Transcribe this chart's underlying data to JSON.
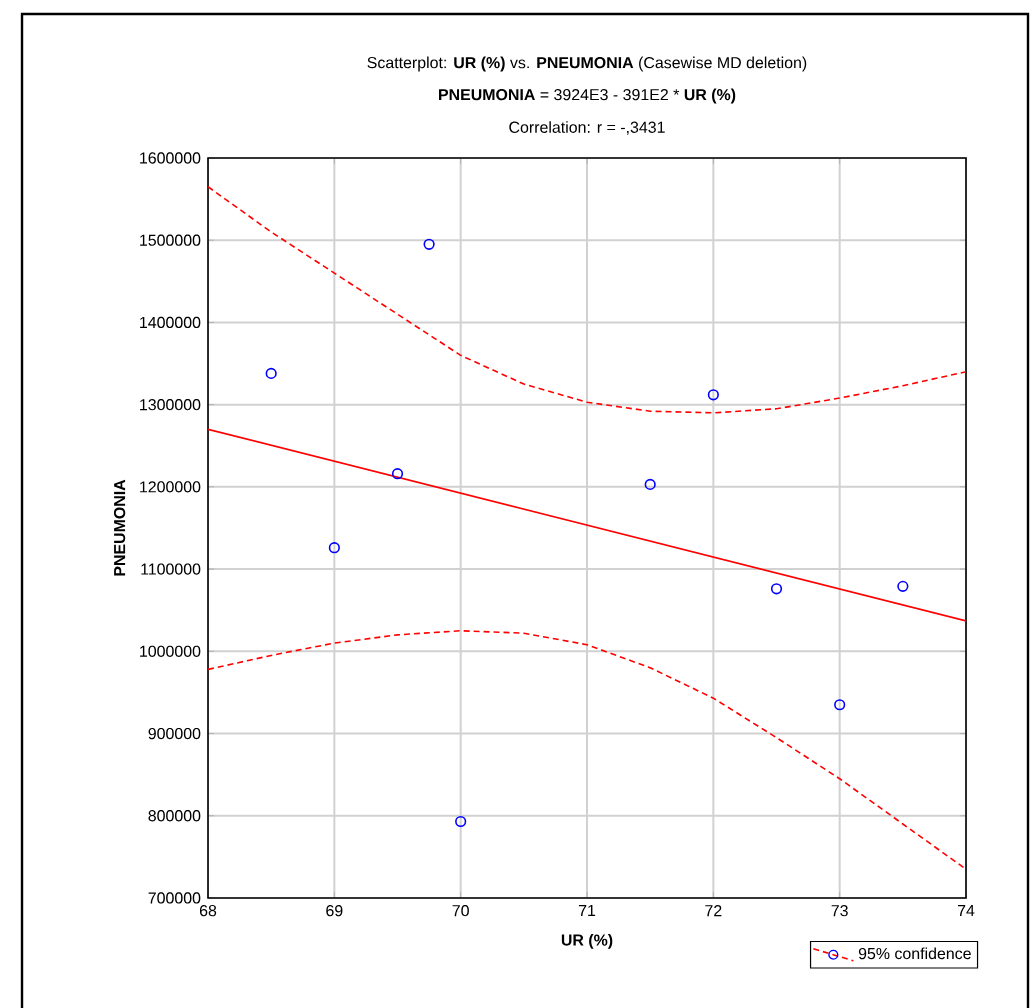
{
  "chart_data": {
    "type": "scatter",
    "title": "Scatterplot: **UR (%)** vs. **PNEUMONIA** (Casewise MD deletion)",
    "subtitle": "**PNEUMONIA** = 3924E3 - 391E2  * **UR (%)**",
    "annotations": [
      "Correlation: r = -,3431"
    ],
    "xlabel": "UR (%)",
    "ylabel": "PNEUMONIA",
    "xlim": [
      68,
      74
    ],
    "ylim": [
      700000,
      1600000
    ],
    "xticks": [
      68,
      69,
      70,
      71,
      72,
      73,
      74
    ],
    "yticks": [
      700000,
      800000,
      900000,
      1000000,
      1100000,
      1200000,
      1300000,
      1400000,
      1500000,
      1600000
    ],
    "grid": true,
    "legend": "bottom right",
    "series": [
      {
        "marker": "circle",
        "color": "#0000ff",
        "x": [
          68.5,
          69,
          69.5,
          69.75,
          70,
          71.5,
          72,
          72.5,
          73,
          73.5
        ],
        "values": [
          1338000,
          1126000,
          1216000,
          1495000,
          793000,
          1203000,
          1312000,
          1076000,
          935000,
          1079000
        ]
      },
      {
        "type": "line",
        "color": "#ff0000",
        "line_style": "solid",
        "x": [
          68,
          74
        ],
        "values": [
          1270000,
          1037000
        ]
      },
      {
        "type": "line",
        "name": "95% confidence",
        "color": "#ff0000",
        "line_style": "dashed",
        "x": [
          68,
          68.5,
          69,
          69.5,
          70,
          70.5,
          71,
          71.5,
          72,
          72.5,
          73,
          73.5,
          74
        ],
        "values": [
          1565000,
          1510000,
          1460000,
          1410000,
          1360000,
          1325000,
          1303000,
          1292000,
          1290000,
          1295000,
          1308000,
          1323000,
          1340000
        ]
      },
      {
        "type": "line",
        "color": "#ff0000",
        "line_style": "dashed",
        "x": [
          68,
          68.5,
          69,
          69.5,
          70,
          70.5,
          71,
          71.5,
          72,
          72.5,
          73,
          73.5,
          74
        ],
        "values": [
          978000,
          995000,
          1010000,
          1020000,
          1025000,
          1022000,
          1008000,
          980000,
          943000,
          895000,
          845000,
          790000,
          735000
        ]
      }
    ]
  }
}
